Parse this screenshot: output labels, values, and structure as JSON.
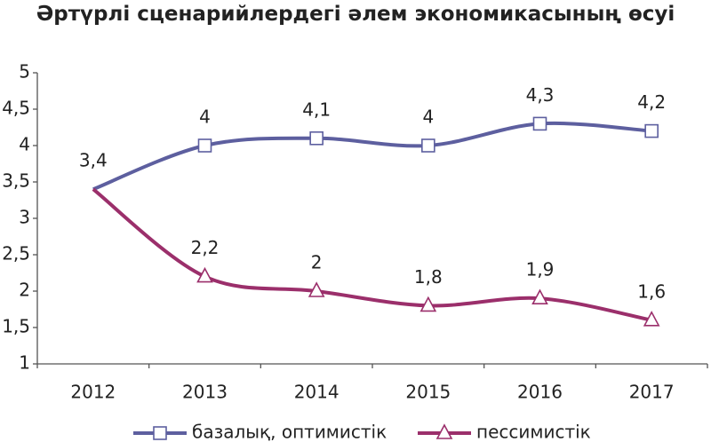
{
  "chart_data": {
    "type": "line",
    "title": "Әртүрлі сценарийлердегі әлем экономикасының өсуі",
    "categories": [
      "2012",
      "2013",
      "2014",
      "2015",
      "2016",
      "2017"
    ],
    "series": [
      {
        "name": "базалық, оптимистік",
        "color": "#5d5f9f",
        "marker": "square",
        "values": [
          3.4,
          4,
          4.1,
          4,
          4.3,
          4.2
        ],
        "value_labels": [
          "3,4",
          "4",
          "4,1",
          "4",
          "4,3",
          "4,2"
        ]
      },
      {
        "name": "пессимистік",
        "color": "#9b2f6b",
        "marker": "triangle",
        "values": [
          3.4,
          2.2,
          2,
          1.8,
          1.9,
          1.6
        ],
        "value_labels": [
          null,
          "2,2",
          "2",
          "1,8",
          "1,9",
          "1,6"
        ]
      }
    ],
    "ylim": [
      1,
      5
    ],
    "yticks": [
      1,
      {
        "value": 1.5,
        "label": "1,5"
      },
      2,
      {
        "value": 2.5,
        "label": "2,5"
      },
      3,
      {
        "value": 3.5,
        "label": "3,5"
      },
      4,
      {
        "value": 4.5,
        "label": "4,5"
      },
      5
    ],
    "grid": false,
    "smooth": true,
    "legend": "bottom"
  }
}
